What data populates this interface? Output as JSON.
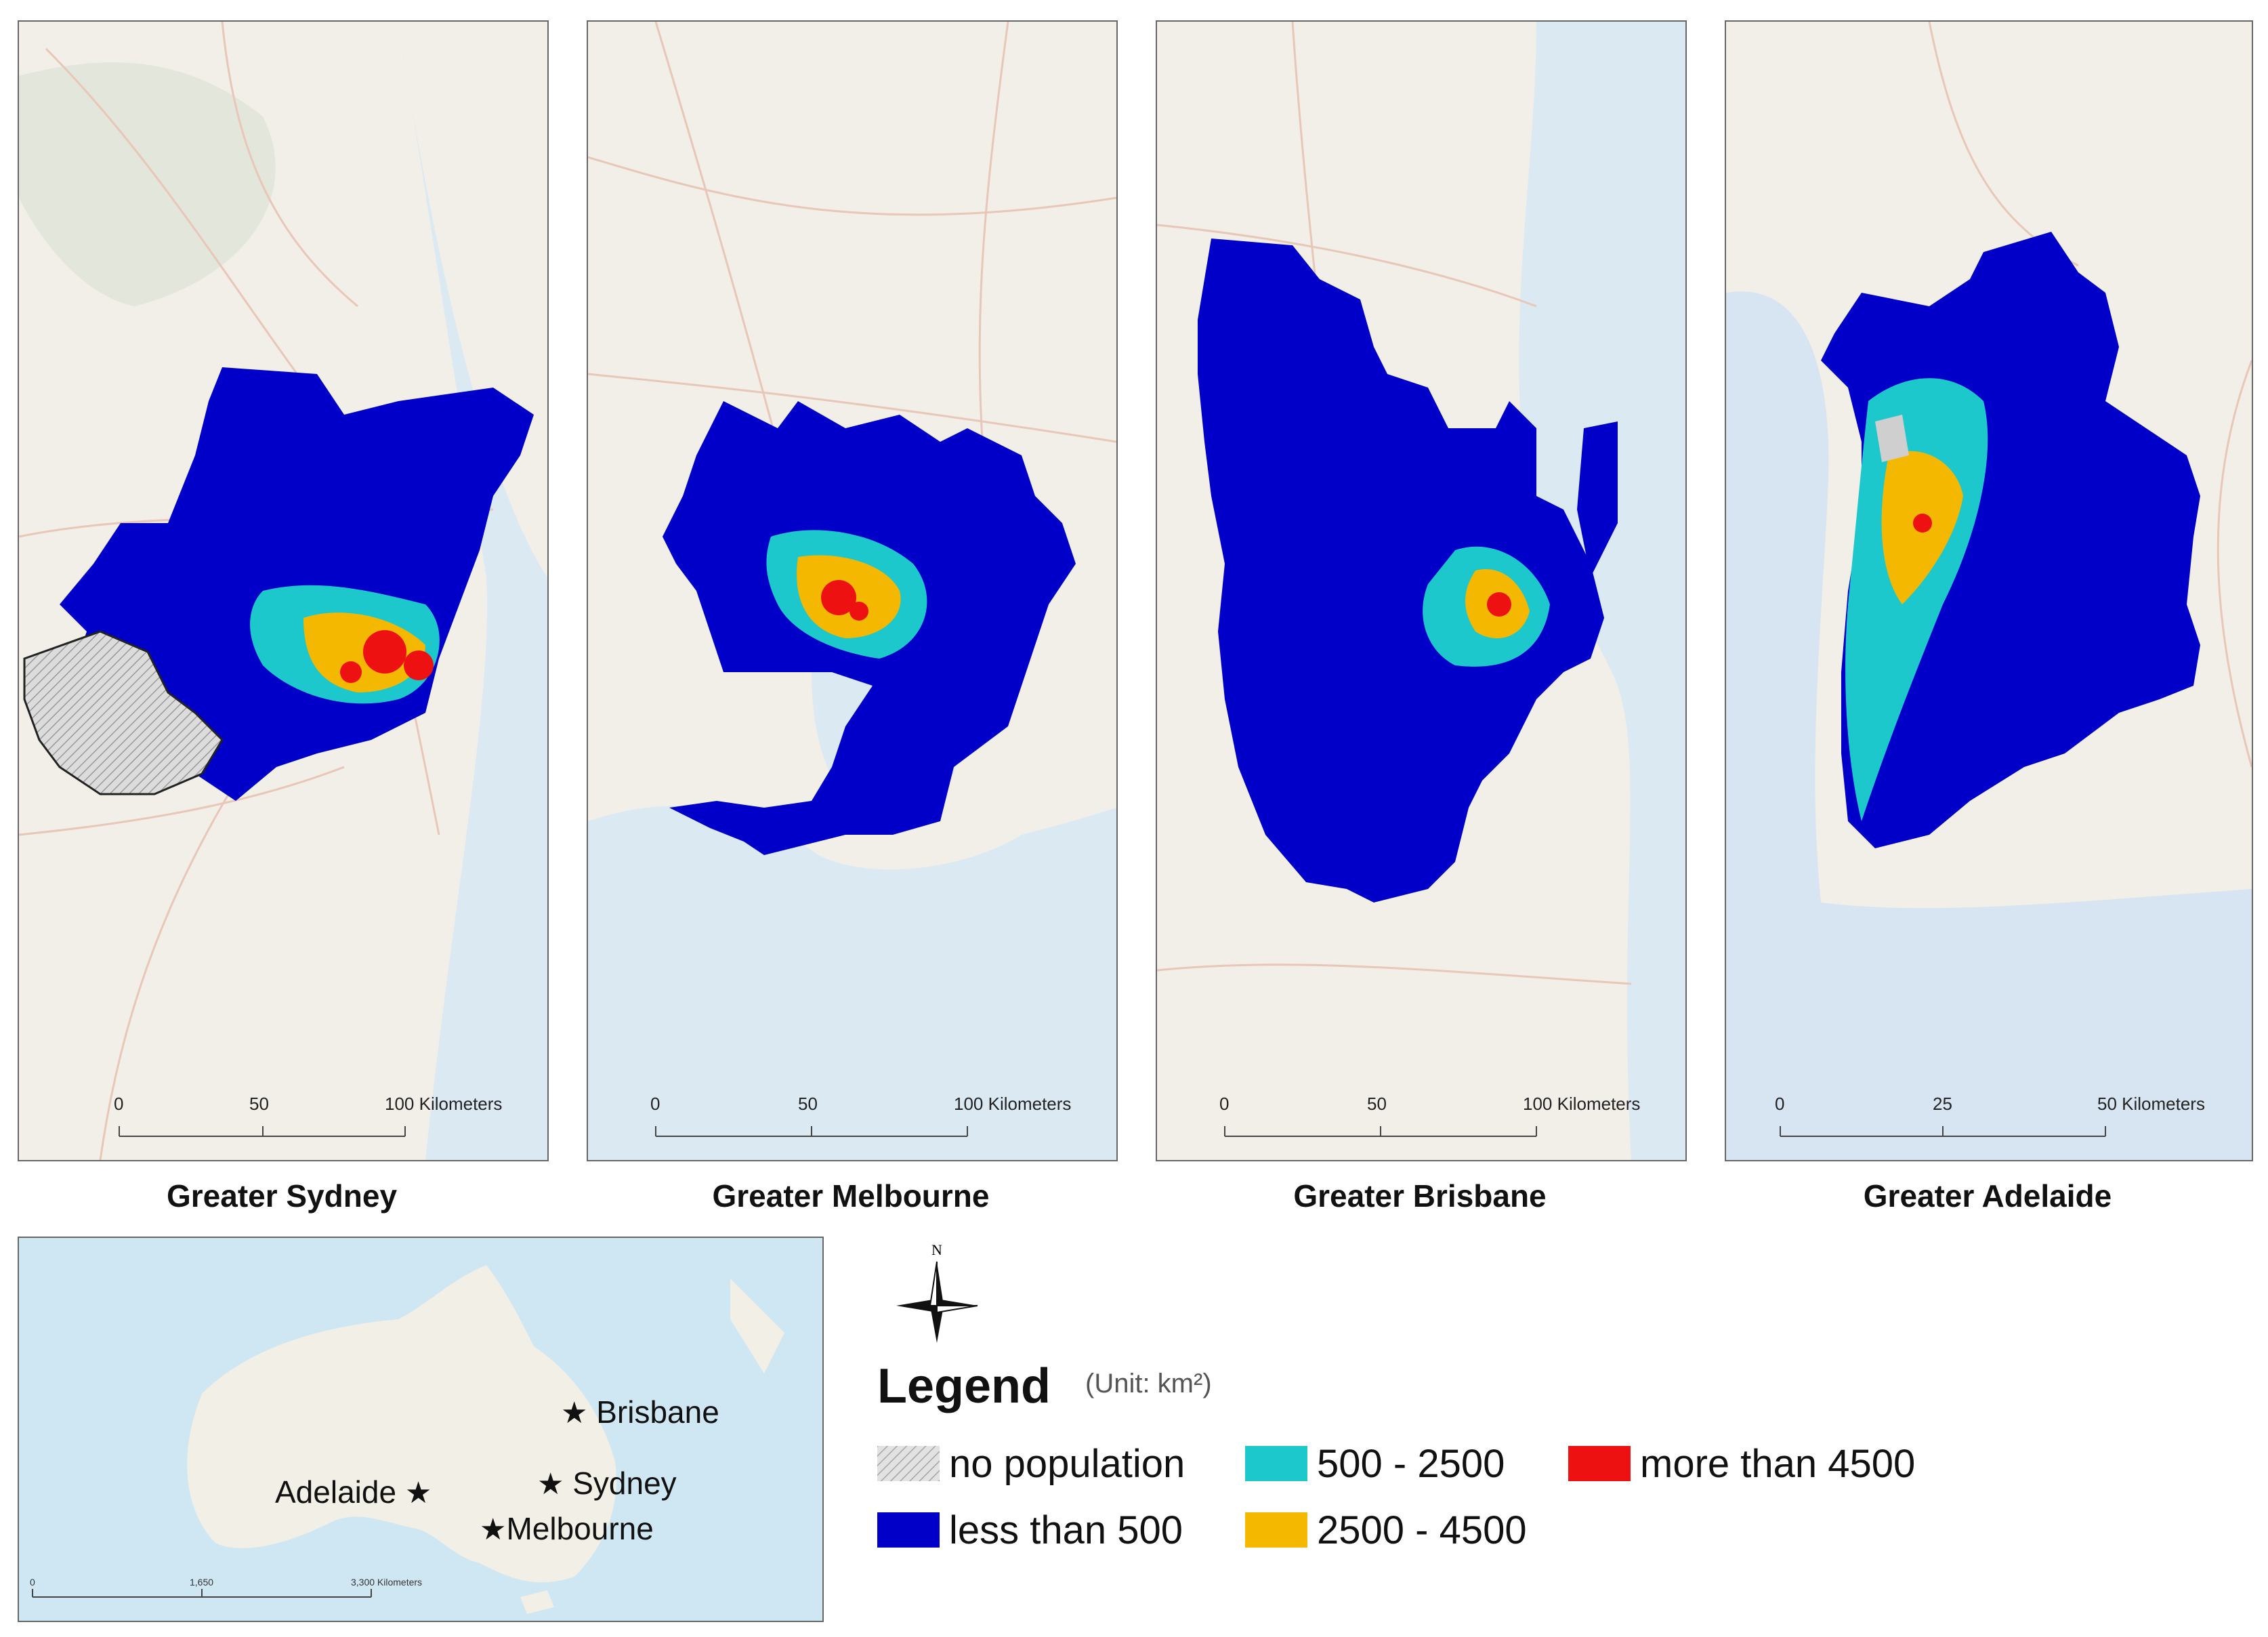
{
  "maps": [
    {
      "caption": "Greater Sydney",
      "scale": {
        "labels": [
          "0",
          "50",
          "100 Kilometers"
        ]
      }
    },
    {
      "caption": "Greater Melbourne",
      "scale": {
        "labels": [
          "0",
          "50",
          "100 Kilometers"
        ]
      }
    },
    {
      "caption": "Greater Brisbane",
      "scale": {
        "labels": [
          "0",
          "50",
          "100 Kilometers"
        ]
      }
    },
    {
      "caption": "Greater Adelaide",
      "scale": {
        "labels": [
          "0",
          "25",
          "50 Kilometers"
        ]
      }
    }
  ],
  "inset": {
    "cities": [
      "Brisbane",
      "Sydney",
      "Adelaide",
      "Melbourne"
    ],
    "scale_labels": [
      "0",
      "1,650",
      "3,300 Kilometers"
    ]
  },
  "compass": {
    "north": "N"
  },
  "legend": {
    "title": "Legend",
    "unit": "(Unit: km²)",
    "items": [
      {
        "label": "no population",
        "color": "#d9d9d9",
        "pattern": "hatch"
      },
      {
        "label": "500 - 2500",
        "color": "#1cc8cc"
      },
      {
        "label": "more than 4500",
        "color": "#ee1111"
      },
      {
        "label": "less than 500",
        "color": "#0000c8"
      },
      {
        "label": "2500 - 4500",
        "color": "#f5b800"
      }
    ]
  }
}
